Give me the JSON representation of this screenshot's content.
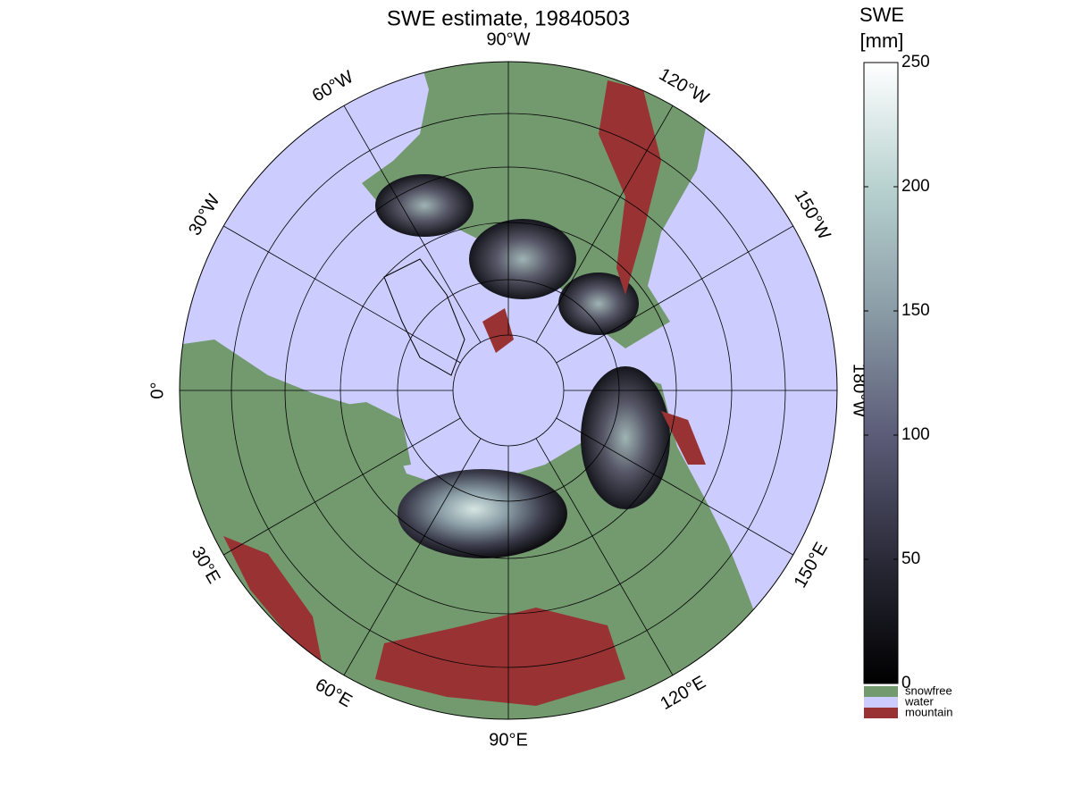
{
  "title": "SWE estimate, 19840503",
  "map": {
    "longitude_labels": [
      "0°",
      "30°E",
      "60°E",
      "90°E",
      "120°E",
      "150°E",
      "180°W",
      "150°W",
      "120°W",
      "90°W",
      "60°W",
      "30°W"
    ],
    "colors": {
      "water": "#ccccff",
      "snowfree": "#73996f",
      "mountain": "#993333"
    }
  },
  "colorbar": {
    "title": [
      "SWE",
      "[mm]"
    ],
    "lim": [
      0,
      250
    ],
    "ticks": [
      0,
      50,
      100,
      150,
      200,
      250
    ],
    "colormap": [
      "#000000",
      "#2a2a38",
      "#5c5c78",
      "#8a9ca6",
      "#b8d2d0",
      "#ffffff"
    ]
  },
  "legend": [
    {
      "label": "snowfree",
      "color": "#73996f"
    },
    {
      "label": "water",
      "color": "#ccccff"
    },
    {
      "label": "mountain",
      "color": "#993333"
    }
  ]
}
